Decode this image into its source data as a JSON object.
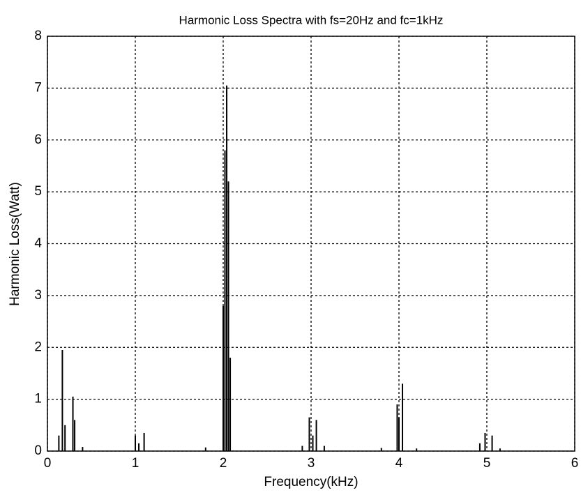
{
  "chart_data": {
    "type": "stem",
    "title": "Harmonic Loss Spectra with fs=20Hz and fc=1kHz",
    "xlabel": "Frequency(kHz)",
    "ylabel": "Harmonic Loss(Watt)",
    "color": "#000000",
    "grid": true,
    "x": [
      0.13,
      0.17,
      0.2,
      0.29,
      0.31,
      0.4,
      1.0,
      1.04,
      1.1,
      1.8,
      2.0,
      2.02,
      2.04,
      2.06,
      2.08,
      2.9,
      2.98,
      3.02,
      3.06,
      3.15,
      3.8,
      3.98,
      4.0,
      4.04,
      4.2,
      4.92,
      4.98,
      5.06,
      5.15
    ],
    "values": [
      0.3,
      1.95,
      0.5,
      1.05,
      0.6,
      0.08,
      0.3,
      0.15,
      0.35,
      0.07,
      2.8,
      5.8,
      7.05,
      5.2,
      1.8,
      0.1,
      0.65,
      0.3,
      0.6,
      0.1,
      0.06,
      0.9,
      0.65,
      1.3,
      0.05,
      0.15,
      0.35,
      0.3,
      0.05
    ],
    "xlim": [
      0,
      6
    ],
    "xticks": [
      0,
      1,
      2,
      3,
      4,
      5,
      6
    ],
    "ylim": [
      0,
      8
    ],
    "yticks": [
      0,
      1,
      2,
      3,
      4,
      5,
      6,
      7,
      8
    ]
  }
}
